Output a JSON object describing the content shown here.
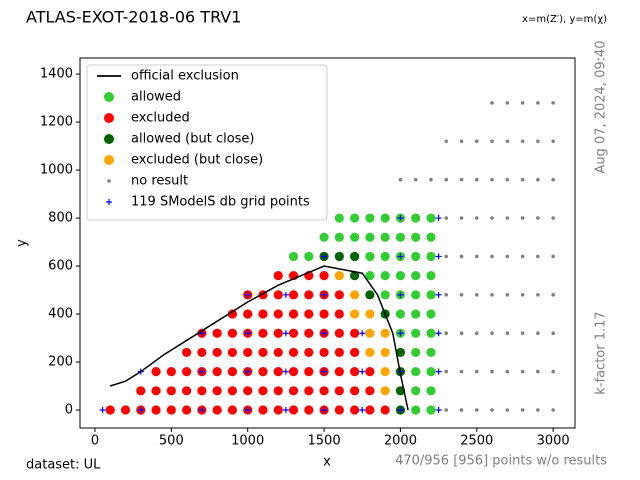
{
  "chart_data": {
    "type": "scatter",
    "title": "ATLAS-EXOT-2018-06 TRV1",
    "subtitle": "x=m(Z′), y=m(χ)",
    "x_label": "x",
    "y_label": "y",
    "side_annotations": [
      "Aug 07, 2024, 09:40",
      "k-factor 1.17"
    ],
    "footer_left": "dataset: UL",
    "footer_right": "470/956 [956] points w/o results",
    "xlim": [
      -98,
      3143
    ],
    "ylim": [
      -75,
      1467
    ],
    "xticks": [
      0,
      500,
      1000,
      1500,
      2000,
      2500,
      3000
    ],
    "yticks": [
      0,
      200,
      400,
      600,
      800,
      1000,
      1200,
      1400
    ],
    "legend": "upper left",
    "series": [
      {
        "name": "official exclusion",
        "color": "#000000",
        "marker": "line",
        "x": [
          100,
          200,
          300,
          450,
          700,
          1000,
          1200,
          1500,
          1750,
          1850,
          1950,
          2000,
          2050
        ],
        "y": [
          100,
          120,
          160,
          230,
          330,
          450,
          520,
          600,
          570,
          480,
          320,
          150,
          0
        ]
      },
      {
        "name": "allowed",
        "color": "#32cd32",
        "marker": "circle",
        "x": [
          2100,
          2200,
          2100,
          2200,
          2100,
          2200,
          2100,
          2200,
          2000,
          2100,
          2200,
          2000,
          2100,
          2200,
          1900,
          2000,
          2100,
          2200,
          1800,
          1900,
          2000,
          2100,
          2200,
          1300,
          1400,
          1800,
          1900,
          2000,
          2100,
          2200,
          1500,
          1600,
          1700,
          1800,
          1900,
          2000,
          2100,
          2200,
          1600,
          1700,
          1800,
          1900,
          2000,
          2100,
          2200
        ],
        "y": [
          0,
          0,
          80,
          80,
          160,
          160,
          240,
          240,
          320,
          320,
          320,
          400,
          400,
          400,
          480,
          480,
          480,
          480,
          560,
          560,
          560,
          560,
          560,
          640,
          640,
          640,
          640,
          640,
          640,
          640,
          720,
          720,
          720,
          720,
          720,
          720,
          720,
          720,
          800,
          800,
          800,
          800,
          800,
          800,
          800
        ]
      },
      {
        "name": "excluded",
        "color": "#ff0000",
        "marker": "circle",
        "x": [
          100,
          200,
          300,
          400,
          500,
          600,
          700,
          800,
          900,
          1000,
          1100,
          1200,
          1300,
          1400,
          1500,
          1600,
          1700,
          1800,
          1900,
          300,
          400,
          500,
          600,
          700,
          800,
          900,
          1000,
          1100,
          1200,
          1300,
          1400,
          1500,
          1600,
          1700,
          1800,
          400,
          500,
          600,
          700,
          800,
          900,
          1000,
          1100,
          1200,
          1300,
          1400,
          1500,
          1600,
          1700,
          1800,
          600,
          700,
          800,
          900,
          1000,
          1100,
          1200,
          1300,
          1400,
          1500,
          1600,
          1700,
          700,
          800,
          900,
          1000,
          1100,
          1200,
          1300,
          1400,
          1500,
          1600,
          1700,
          900,
          1000,
          1100,
          1200,
          1300,
          1400,
          1500,
          1600,
          1000,
          1100,
          1200,
          1300,
          1400,
          1500,
          1600,
          1200,
          1300,
          1400,
          1500
        ],
        "y": [
          0,
          0,
          0,
          0,
          0,
          0,
          0,
          0,
          0,
          0,
          0,
          0,
          0,
          0,
          0,
          0,
          0,
          0,
          0,
          80,
          80,
          80,
          80,
          80,
          80,
          80,
          80,
          80,
          80,
          80,
          80,
          80,
          80,
          80,
          80,
          160,
          160,
          160,
          160,
          160,
          160,
          160,
          160,
          160,
          160,
          160,
          160,
          160,
          160,
          160,
          240,
          240,
          240,
          240,
          240,
          240,
          240,
          240,
          240,
          240,
          240,
          240,
          320,
          320,
          320,
          320,
          320,
          320,
          320,
          320,
          320,
          320,
          320,
          400,
          400,
          400,
          400,
          400,
          400,
          400,
          400,
          480,
          480,
          480,
          480,
          480,
          480,
          480,
          560,
          560,
          560,
          560
        ]
      },
      {
        "name": "allowed (but close)",
        "color": "#006400",
        "marker": "circle",
        "x": [
          2000,
          2000,
          2000,
          2000,
          1900,
          1800,
          1700,
          1500,
          1600,
          1700
        ],
        "y": [
          0,
          80,
          160,
          240,
          400,
          480,
          560,
          640,
          640,
          640
        ]
      },
      {
        "name": "excluded (but close)",
        "color": "#ffa500",
        "marker": "circle",
        "x": [
          1900,
          1900,
          1800,
          1900,
          1800,
          1900,
          1700,
          1800,
          1700,
          1600
        ],
        "y": [
          80,
          160,
          240,
          240,
          320,
          320,
          400,
          400,
          480,
          560
        ]
      },
      {
        "name": "no result",
        "color": "#808080",
        "marker": "dot",
        "x": [
          2300,
          2300,
          2300,
          2300,
          2300,
          2300,
          2300,
          2300,
          2400,
          2400,
          2400,
          2400,
          2400,
          2400,
          2400,
          2400,
          2500,
          2500,
          2500,
          2500,
          2500,
          2500,
          2500,
          2500,
          2600,
          2600,
          2600,
          2600,
          2600,
          2600,
          2600,
          2600,
          2600,
          2700,
          2700,
          2700,
          2700,
          2700,
          2700,
          2700,
          2700,
          2700,
          2800,
          2800,
          2800,
          2800,
          2800,
          2800,
          2800,
          2800,
          2800,
          2900,
          2900,
          2900,
          2900,
          2900,
          2900,
          2900,
          2900,
          2900,
          3000,
          3000,
          3000,
          3000,
          3000,
          3000,
          3000,
          3000,
          3000,
          2000,
          2100,
          2200
        ],
        "y": [
          0,
          160,
          320,
          480,
          640,
          800,
          960,
          1120,
          0,
          160,
          320,
          480,
          640,
          800,
          960,
          1120,
          0,
          160,
          320,
          480,
          640,
          800,
          960,
          1120,
          0,
          160,
          320,
          480,
          640,
          800,
          960,
          1120,
          1280,
          0,
          160,
          320,
          480,
          640,
          800,
          960,
          1120,
          1280,
          0,
          160,
          320,
          480,
          640,
          800,
          960,
          1120,
          1280,
          0,
          160,
          320,
          480,
          640,
          800,
          960,
          1120,
          1280,
          0,
          160,
          320,
          480,
          640,
          800,
          960,
          1120,
          1280,
          960,
          960,
          960
        ]
      },
      {
        "name": "119 SModelS db grid points",
        "color": "#0000ff",
        "marker": "plus",
        "x": [
          50,
          300,
          700,
          1000,
          1250,
          1500,
          1750,
          2000,
          2250,
          300,
          700,
          1000,
          1250,
          1500,
          1750,
          2000,
          2250,
          700,
          1000,
          1250,
          1500,
          1750,
          2000,
          2250,
          1000,
          1250,
          1500,
          2000,
          2250,
          1500,
          2000,
          2250,
          2000,
          2250
        ],
        "y": [
          0,
          0,
          0,
          0,
          0,
          0,
          0,
          0,
          0,
          160,
          160,
          160,
          160,
          160,
          160,
          160,
          160,
          320,
          320,
          320,
          320,
          320,
          320,
          320,
          480,
          480,
          480,
          480,
          480,
          640,
          640,
          640,
          800,
          800
        ]
      }
    ]
  }
}
